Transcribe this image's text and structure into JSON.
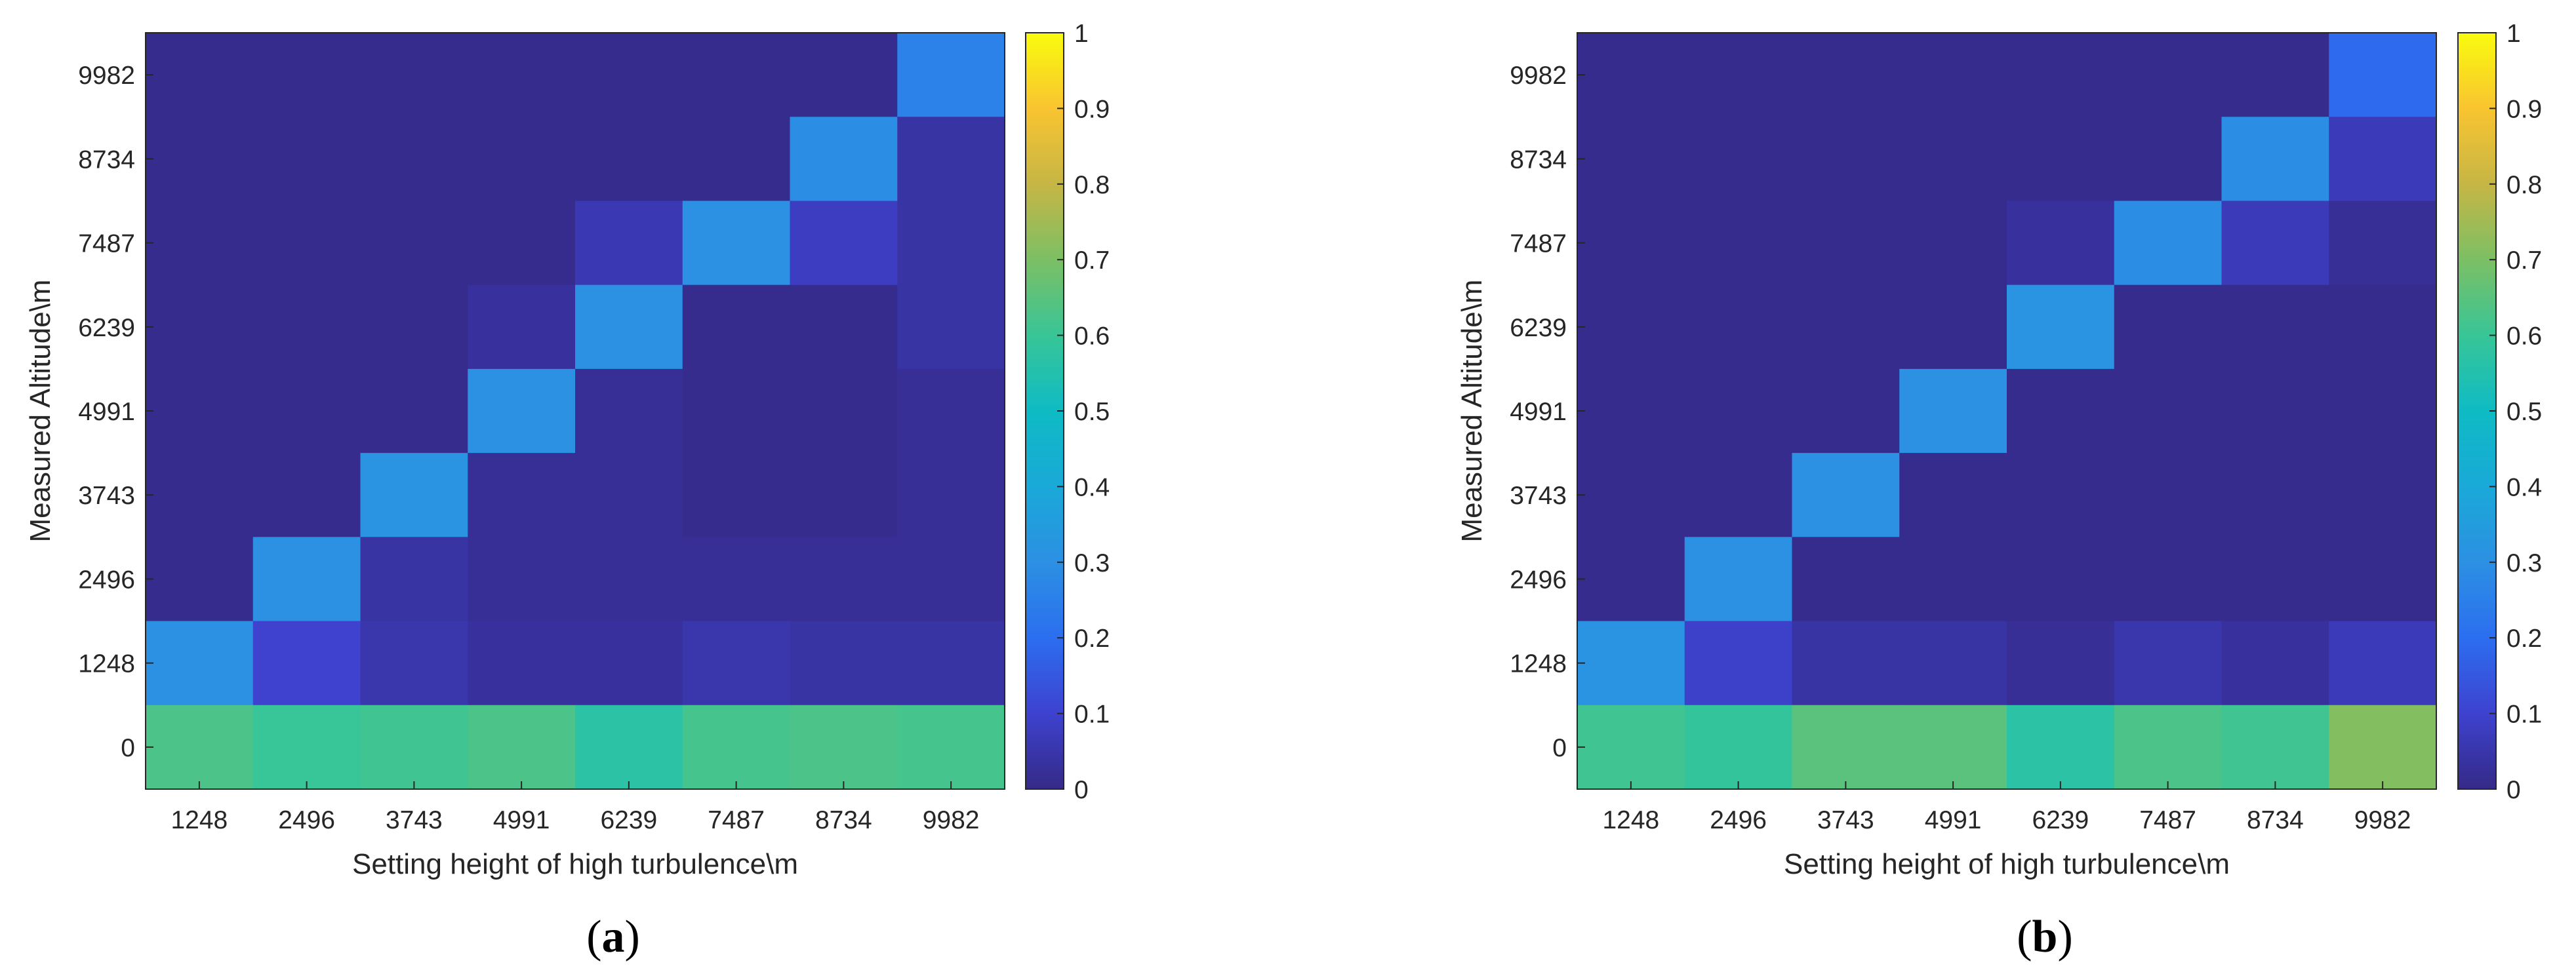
{
  "chart_data": [
    {
      "type": "heatmap",
      "panel_label": "a",
      "xlabel": "Setting height of high turbulence\\m",
      "ylabel": "Measured Altitude\\m",
      "x_categories": [
        "1248",
        "2496",
        "3743",
        "4991",
        "6239",
        "7487",
        "8734",
        "9982"
      ],
      "y_categories": [
        "9982",
        "8734",
        "7487",
        "6239",
        "4991",
        "3743",
        "2496",
        "1248",
        "0"
      ],
      "values": [
        [
          0.01,
          0.01,
          0.01,
          0.01,
          0.01,
          0.01,
          0.01,
          0.26
        ],
        [
          0.01,
          0.01,
          0.01,
          0.01,
          0.01,
          0.01,
          0.29,
          0.04
        ],
        [
          0.01,
          0.01,
          0.01,
          0.01,
          0.06,
          0.3,
          0.08,
          0.04
        ],
        [
          0.01,
          0.01,
          0.01,
          0.03,
          0.3,
          0.01,
          0.01,
          0.04
        ],
        [
          0.01,
          0.01,
          0.01,
          0.3,
          0.02,
          0.01,
          0.01,
          0.02
        ],
        [
          0.01,
          0.01,
          0.31,
          0.02,
          0.02,
          0.01,
          0.01,
          0.02
        ],
        [
          0.01,
          0.3,
          0.04,
          0.02,
          0.02,
          0.02,
          0.02,
          0.02
        ],
        [
          0.3,
          0.1,
          0.05,
          0.03,
          0.03,
          0.05,
          0.04,
          0.04
        ],
        [
          0.63,
          0.6,
          0.61,
          0.63,
          0.57,
          0.62,
          0.63,
          0.62
        ]
      ],
      "clim": [
        0,
        1
      ],
      "colorbar_ticks": [
        "0",
        "0.1",
        "0.2",
        "0.3",
        "0.4",
        "0.5",
        "0.6",
        "0.7",
        "0.8",
        "0.9",
        "1"
      ],
      "colormap": "parula"
    },
    {
      "type": "heatmap",
      "panel_label": "b",
      "xlabel": "Setting height of high turbulence\\m",
      "ylabel": "Measured Altitude\\m",
      "x_categories": [
        "1248",
        "2496",
        "3743",
        "4991",
        "6239",
        "7487",
        "8734",
        "9982"
      ],
      "y_categories": [
        "9982",
        "8734",
        "7487",
        "6239",
        "4991",
        "3743",
        "2496",
        "1248",
        "0"
      ],
      "values": [
        [
          0.01,
          0.01,
          0.01,
          0.01,
          0.01,
          0.01,
          0.01,
          0.19
        ],
        [
          0.01,
          0.01,
          0.01,
          0.01,
          0.01,
          0.01,
          0.29,
          0.07
        ],
        [
          0.01,
          0.01,
          0.01,
          0.01,
          0.03,
          0.29,
          0.07,
          0.02
        ],
        [
          0.01,
          0.01,
          0.01,
          0.01,
          0.31,
          0.01,
          0.01,
          0.01
        ],
        [
          0.01,
          0.01,
          0.01,
          0.3,
          0.01,
          0.01,
          0.01,
          0.01
        ],
        [
          0.01,
          0.01,
          0.3,
          0.01,
          0.01,
          0.01,
          0.01,
          0.01
        ],
        [
          0.01,
          0.3,
          0.01,
          0.01,
          0.01,
          0.01,
          0.01,
          0.01
        ],
        [
          0.31,
          0.09,
          0.04,
          0.04,
          0.02,
          0.05,
          0.03,
          0.07
        ],
        [
          0.61,
          0.59,
          0.65,
          0.65,
          0.57,
          0.63,
          0.61,
          0.71
        ]
      ],
      "clim": [
        0,
        1
      ],
      "colorbar_ticks": [
        "0",
        "0.1",
        "0.2",
        "0.3",
        "0.4",
        "0.5",
        "0.6",
        "0.7",
        "0.8",
        "0.9",
        "1"
      ],
      "colormap": "parula"
    }
  ]
}
